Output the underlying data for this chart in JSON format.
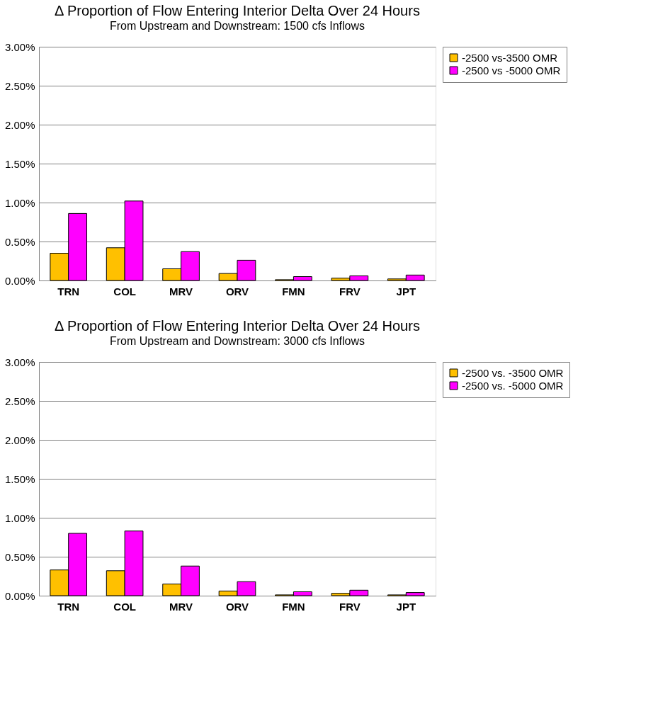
{
  "chart_data": [
    {
      "type": "bar",
      "title": "Δ Proportion of Flow Entering Interior Delta Over 24 Hours",
      "subtitle": "From Upstream and Downstream: 1500 cfs Inflows",
      "categories": [
        "TRN",
        "COL",
        "MRV",
        "ORV",
        "FMN",
        "FRV",
        "JPT"
      ],
      "series": [
        {
          "name": "-2500 vs-3500 OMR",
          "color": "#ffc000",
          "values": [
            0.35,
            0.42,
            0.15,
            0.09,
            0.01,
            0.03,
            0.02
          ]
        },
        {
          "name": "-2500 vs -5000 OMR",
          "color": "#ff00ff",
          "values": [
            0.86,
            1.02,
            0.37,
            0.26,
            0.05,
            0.06,
            0.07
          ]
        }
      ],
      "ylim": [
        0,
        3
      ],
      "yticks": [
        {
          "value": 0,
          "label": "0.00%"
        },
        {
          "value": 0.5,
          "label": "0.50%"
        },
        {
          "value": 1,
          "label": "1.00%"
        },
        {
          "value": 1.5,
          "label": "1.50%"
        },
        {
          "value": 2,
          "label": "2.00%"
        },
        {
          "value": 2.5,
          "label": "2.50%"
        },
        {
          "value": 3,
          "label": "3.00%"
        }
      ],
      "grid": "y",
      "legend": "right"
    },
    {
      "type": "bar",
      "title": "Δ Proportion of Flow Entering Interior Delta Over 24 Hours",
      "subtitle": "From Upstream and Downstream: 3000 cfs Inflows",
      "categories": [
        "TRN",
        "COL",
        "MRV",
        "ORV",
        "FMN",
        "FRV",
        "JPT"
      ],
      "series": [
        {
          "name": "-2500 vs. -3500 OMR",
          "color": "#ffc000",
          "values": [
            0.33,
            0.32,
            0.15,
            0.06,
            0.01,
            0.03,
            0.01
          ]
        },
        {
          "name": "-2500 vs. -5000 OMR",
          "color": "#ff00ff",
          "values": [
            0.8,
            0.83,
            0.38,
            0.18,
            0.05,
            0.07,
            0.04
          ]
        }
      ],
      "ylim": [
        0,
        3
      ],
      "yticks": [
        {
          "value": 0,
          "label": "0.00%"
        },
        {
          "value": 0.5,
          "label": "0.50%"
        },
        {
          "value": 1,
          "label": "1.00%"
        },
        {
          "value": 1.5,
          "label": "1.50%"
        },
        {
          "value": 2,
          "label": "2.00%"
        },
        {
          "value": 2.5,
          "label": "2.50%"
        },
        {
          "value": 3,
          "label": "3.00%"
        }
      ],
      "grid": "y",
      "legend": "right"
    }
  ]
}
